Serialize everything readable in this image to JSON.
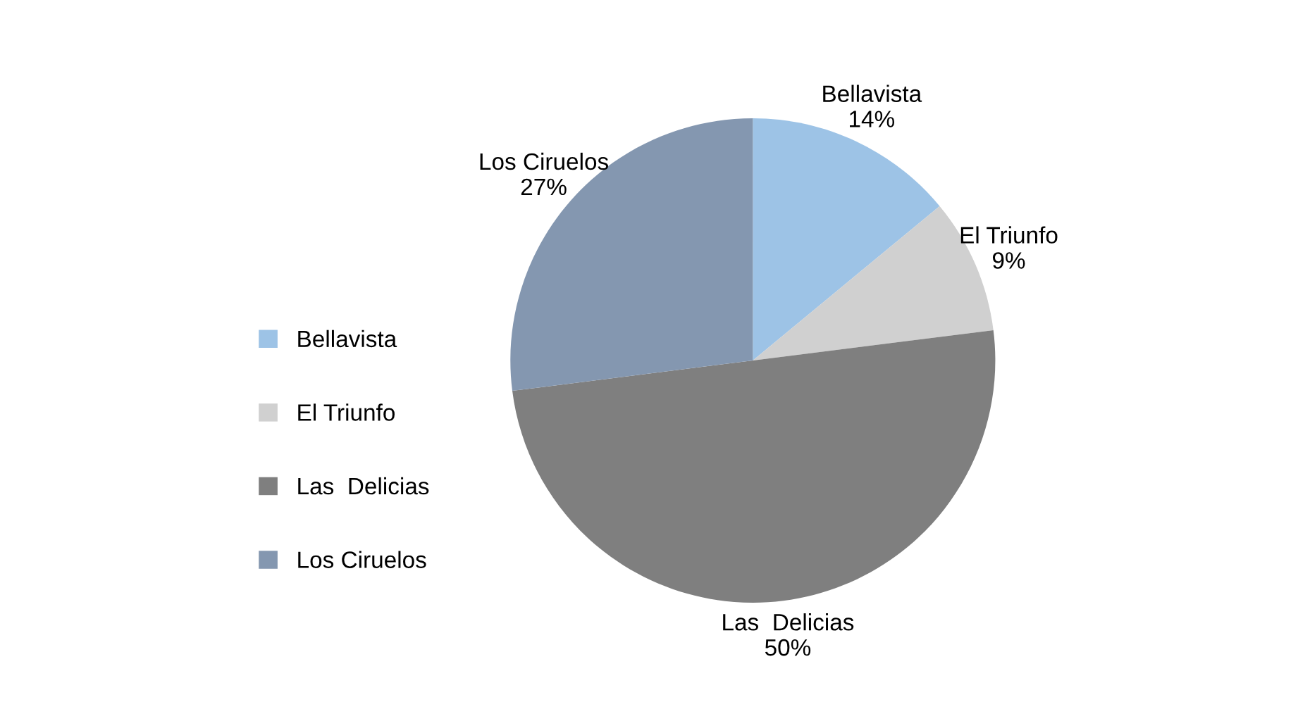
{
  "chart_data": {
    "type": "pie",
    "categories": [
      "Bellavista",
      "El Triunfo",
      "Las  Delicias",
      "Los Ciruelos"
    ],
    "values": [
      14,
      9,
      50,
      27
    ],
    "value_labels": [
      "14%",
      "9%",
      "50%",
      "27%"
    ],
    "colors": [
      "#9dc3e6",
      "#d0d0d0",
      "#7f7f7f",
      "#8497b0"
    ],
    "legend": "left"
  }
}
